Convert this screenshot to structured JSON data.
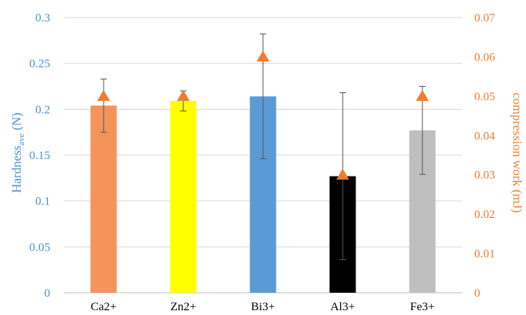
{
  "chart_data": {
    "type": "bar",
    "categories": [
      "Ca2+",
      "Zn2+",
      "Bi3+",
      "Al3+",
      "Fe3+"
    ],
    "series": [
      {
        "axis": "left",
        "type": "bar",
        "values": [
          0.204,
          0.209,
          0.214,
          0.127,
          0.177
        ],
        "error": [
          0.029,
          0.011,
          0.068,
          0.091,
          0.048
        ],
        "colors": [
          "#f4945b",
          "#ffff00",
          "#5b9bd5",
          "#000000",
          "#bfbfbf"
        ]
      },
      {
        "axis": "right",
        "type": "scatter",
        "marker": "triangle",
        "color": "#ed7d31",
        "values": [
          0.05,
          0.05,
          0.06,
          0.03,
          0.05
        ]
      }
    ],
    "ylabel_left": {
      "main": "Hardness",
      "sub": "ave",
      "unit": " (N)"
    },
    "ylabel_right": "compression work (mJ)",
    "ylim_left": [
      0,
      0.3
    ],
    "yticks_left": [
      "0",
      "0.05",
      "0.1",
      "0.15",
      "0.2",
      "0.25",
      "0.3"
    ],
    "ylim_right": [
      0,
      0.07
    ],
    "yticks_right": [
      "0",
      "0.01",
      "0.02",
      "0.03",
      "0.04",
      "0.05",
      "0.06",
      "0.07"
    ],
    "grid": true,
    "grid_color": "#d9d9d9",
    "left_axis_color": "#4a8fd0",
    "right_axis_color": "#ed7d31"
  }
}
